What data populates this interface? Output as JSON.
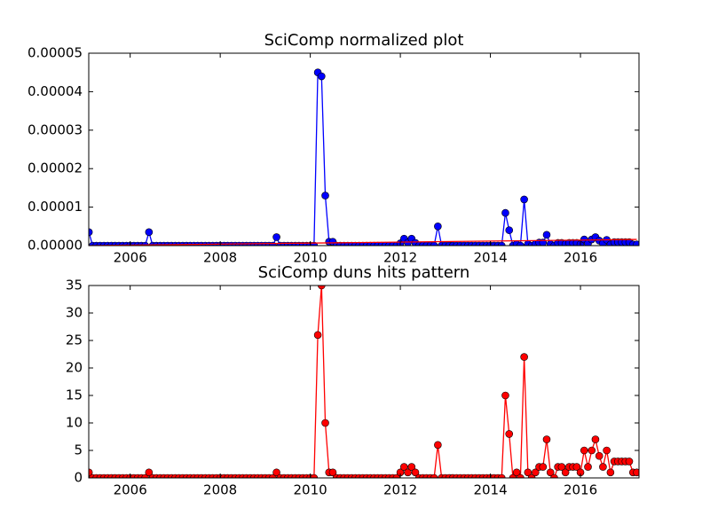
{
  "chart_data": [
    {
      "type": "line",
      "title": "SciComp normalized plot",
      "x": [
        2005.083,
        2005.167,
        2005.25,
        2005.333,
        2005.417,
        2005.5,
        2005.583,
        2005.667,
        2005.75,
        2005.833,
        2005.917,
        2006,
        2006.083,
        2006.167,
        2006.25,
        2006.333,
        2006.417,
        2006.5,
        2006.583,
        2006.667,
        2006.75,
        2006.833,
        2006.917,
        2007,
        2007.083,
        2007.167,
        2007.25,
        2007.333,
        2007.417,
        2007.5,
        2007.583,
        2007.667,
        2007.75,
        2007.833,
        2007.917,
        2008,
        2008.083,
        2008.167,
        2008.25,
        2008.333,
        2008.417,
        2008.5,
        2008.583,
        2008.667,
        2008.75,
        2008.833,
        2008.917,
        2009,
        2009.083,
        2009.167,
        2009.25,
        2009.333,
        2009.417,
        2009.5,
        2009.583,
        2009.667,
        2009.75,
        2009.833,
        2009.917,
        2010,
        2010.083,
        2010.167,
        2010.25,
        2010.333,
        2010.417,
        2010.5,
        2010.583,
        2010.667,
        2010.75,
        2010.833,
        2010.917,
        2011,
        2011.083,
        2011.167,
        2011.25,
        2011.333,
        2011.417,
        2011.5,
        2011.583,
        2011.667,
        2011.75,
        2011.833,
        2011.917,
        2012,
        2012.083,
        2012.167,
        2012.25,
        2012.333,
        2012.417,
        2012.5,
        2012.583,
        2012.667,
        2012.75,
        2012.833,
        2012.917,
        2013,
        2013.083,
        2013.167,
        2013.25,
        2013.333,
        2013.417,
        2013.5,
        2013.583,
        2013.667,
        2013.75,
        2013.833,
        2013.917,
        2014,
        2014.083,
        2014.167,
        2014.25,
        2014.333,
        2014.417,
        2014.5,
        2014.583,
        2014.667,
        2014.75,
        2014.833,
        2014.917,
        2015,
        2015.083,
        2015.167,
        2015.25,
        2015.333,
        2015.417,
        2015.5,
        2015.583,
        2015.667,
        2015.75,
        2015.833,
        2015.917,
        2016,
        2016.083,
        2016.167,
        2016.25,
        2016.333,
        2016.417,
        2016.5,
        2016.583,
        2016.667,
        2016.75,
        2016.833,
        2016.917,
        2017,
        2017.083,
        2017.167,
        2017.25
      ],
      "series": [
        {
          "color": "#0000ff",
          "marker": true,
          "values": [
            3.5e-06,
            0,
            0,
            0,
            0,
            0,
            0,
            0,
            0,
            0,
            0,
            0,
            0,
            0,
            0,
            0,
            3.5e-06,
            0,
            0,
            0,
            0,
            0,
            0,
            0,
            0,
            0,
            0,
            0,
            0,
            0,
            0,
            0,
            0,
            0,
            0,
            0,
            0,
            0,
            0,
            0,
            0,
            0,
            0,
            0,
            0,
            0,
            0,
            0,
            0,
            0,
            2.2e-06,
            0,
            0,
            0,
            0,
            0,
            0,
            0,
            0,
            0,
            0,
            4.5e-05,
            4.4e-05,
            1.3e-05,
            1e-06,
            1e-06,
            0,
            0,
            0,
            0,
            0,
            0,
            0,
            0,
            0,
            0,
            0,
            0,
            0,
            0,
            0,
            0,
            0,
            6e-07,
            1.8e-06,
            8e-07,
            1.8e-06,
            7e-07,
            0,
            0,
            0,
            0,
            0,
            5e-06,
            0,
            0,
            0,
            0,
            0,
            0,
            0,
            0,
            0,
            0,
            0,
            0,
            0,
            0,
            0,
            0,
            0,
            8.5e-06,
            4e-06,
            0,
            4e-07,
            0,
            1.2e-05,
            4e-07,
            0,
            4e-07,
            8e-07,
            8e-07,
            2.8e-06,
            4e-07,
            0,
            7e-07,
            7e-07,
            4e-07,
            7e-07,
            7e-07,
            7e-07,
            3.5e-07,
            1.6e-06,
            6e-07,
            1.6e-06,
            2.2e-06,
            1.3e-06,
            6e-07,
            1.5e-06,
            3e-07,
            9e-07,
            9e-07,
            9e-07,
            9e-07,
            9e-07,
            3e-07,
            3e-07
          ]
        },
        {
          "color": "#ff0000",
          "marker": false,
          "x": [
            2005.083,
            2017.25
          ],
          "values": [
            0,
            1.6e-06
          ]
        }
      ],
      "xlim": [
        2005.08,
        2017.3
      ],
      "xticks": [
        2006,
        2008,
        2010,
        2012,
        2014,
        2016
      ],
      "ylim": [
        0,
        5e-05
      ],
      "yticks": [
        {
          "value": 0,
          "label": "0.00000"
        },
        {
          "value": 1e-05,
          "label": "0.00001"
        },
        {
          "value": 2e-05,
          "label": "0.00002"
        },
        {
          "value": 3e-05,
          "label": "0.00003"
        },
        {
          "value": 4e-05,
          "label": "0.00004"
        },
        {
          "value": 5e-05,
          "label": "0.00005"
        }
      ]
    },
    {
      "type": "line",
      "title": "SciComp duns hits pattern",
      "x": [
        2005.083,
        2005.167,
        2005.25,
        2005.333,
        2005.417,
        2005.5,
        2005.583,
        2005.667,
        2005.75,
        2005.833,
        2005.917,
        2006,
        2006.083,
        2006.167,
        2006.25,
        2006.333,
        2006.417,
        2006.5,
        2006.583,
        2006.667,
        2006.75,
        2006.833,
        2006.917,
        2007,
        2007.083,
        2007.167,
        2007.25,
        2007.333,
        2007.417,
        2007.5,
        2007.583,
        2007.667,
        2007.75,
        2007.833,
        2007.917,
        2008,
        2008.083,
        2008.167,
        2008.25,
        2008.333,
        2008.417,
        2008.5,
        2008.583,
        2008.667,
        2008.75,
        2008.833,
        2008.917,
        2009,
        2009.083,
        2009.167,
        2009.25,
        2009.333,
        2009.417,
        2009.5,
        2009.583,
        2009.667,
        2009.75,
        2009.833,
        2009.917,
        2010,
        2010.083,
        2010.167,
        2010.25,
        2010.333,
        2010.417,
        2010.5,
        2010.583,
        2010.667,
        2010.75,
        2010.833,
        2010.917,
        2011,
        2011.083,
        2011.167,
        2011.25,
        2011.333,
        2011.417,
        2011.5,
        2011.583,
        2011.667,
        2011.75,
        2011.833,
        2011.917,
        2012,
        2012.083,
        2012.167,
        2012.25,
        2012.333,
        2012.417,
        2012.5,
        2012.583,
        2012.667,
        2012.75,
        2012.833,
        2012.917,
        2013,
        2013.083,
        2013.167,
        2013.25,
        2013.333,
        2013.417,
        2013.5,
        2013.583,
        2013.667,
        2013.75,
        2013.833,
        2013.917,
        2014,
        2014.083,
        2014.167,
        2014.25,
        2014.333,
        2014.417,
        2014.5,
        2014.583,
        2014.667,
        2014.75,
        2014.833,
        2014.917,
        2015,
        2015.083,
        2015.167,
        2015.25,
        2015.333,
        2015.417,
        2015.5,
        2015.583,
        2015.667,
        2015.75,
        2015.833,
        2015.917,
        2016,
        2016.083,
        2016.167,
        2016.25,
        2016.333,
        2016.417,
        2016.5,
        2016.583,
        2016.667,
        2016.75,
        2016.833,
        2016.917,
        2017,
        2017.083,
        2017.167,
        2017.25
      ],
      "series": [
        {
          "color": "#ff0000",
          "marker": true,
          "values": [
            1,
            0,
            0,
            0,
            0,
            0,
            0,
            0,
            0,
            0,
            0,
            0,
            0,
            0,
            0,
            0,
            1,
            0,
            0,
            0,
            0,
            0,
            0,
            0,
            0,
            0,
            0,
            0,
            0,
            0,
            0,
            0,
            0,
            0,
            0,
            0,
            0,
            0,
            0,
            0,
            0,
            0,
            0,
            0,
            0,
            0,
            0,
            0,
            0,
            0,
            1,
            0,
            0,
            0,
            0,
            0,
            0,
            0,
            0,
            0,
            0,
            26,
            35,
            10,
            1,
            1,
            0,
            0,
            0,
            0,
            0,
            0,
            0,
            0,
            0,
            0,
            0,
            0,
            0,
            0,
            0,
            0,
            0,
            1,
            2,
            1,
            2,
            1,
            0,
            0,
            0,
            0,
            0,
            6,
            0,
            0,
            0,
            0,
            0,
            0,
            0,
            0,
            0,
            0,
            0,
            0,
            0,
            0,
            0,
            0,
            0,
            15,
            8,
            0,
            1,
            0,
            22,
            1,
            0,
            1,
            2,
            2,
            7,
            1,
            0,
            2,
            2,
            1,
            2,
            2,
            2,
            1,
            5,
            2,
            5,
            7,
            4,
            2,
            5,
            1,
            3,
            3,
            3,
            3,
            3,
            1,
            1
          ]
        }
      ],
      "xlim": [
        2005.08,
        2017.3
      ],
      "xticks": [
        2006,
        2008,
        2010,
        2012,
        2014,
        2016
      ],
      "ylim": [
        0,
        35
      ],
      "yticks": [
        0,
        5,
        10,
        15,
        20,
        25,
        30,
        35
      ]
    }
  ]
}
